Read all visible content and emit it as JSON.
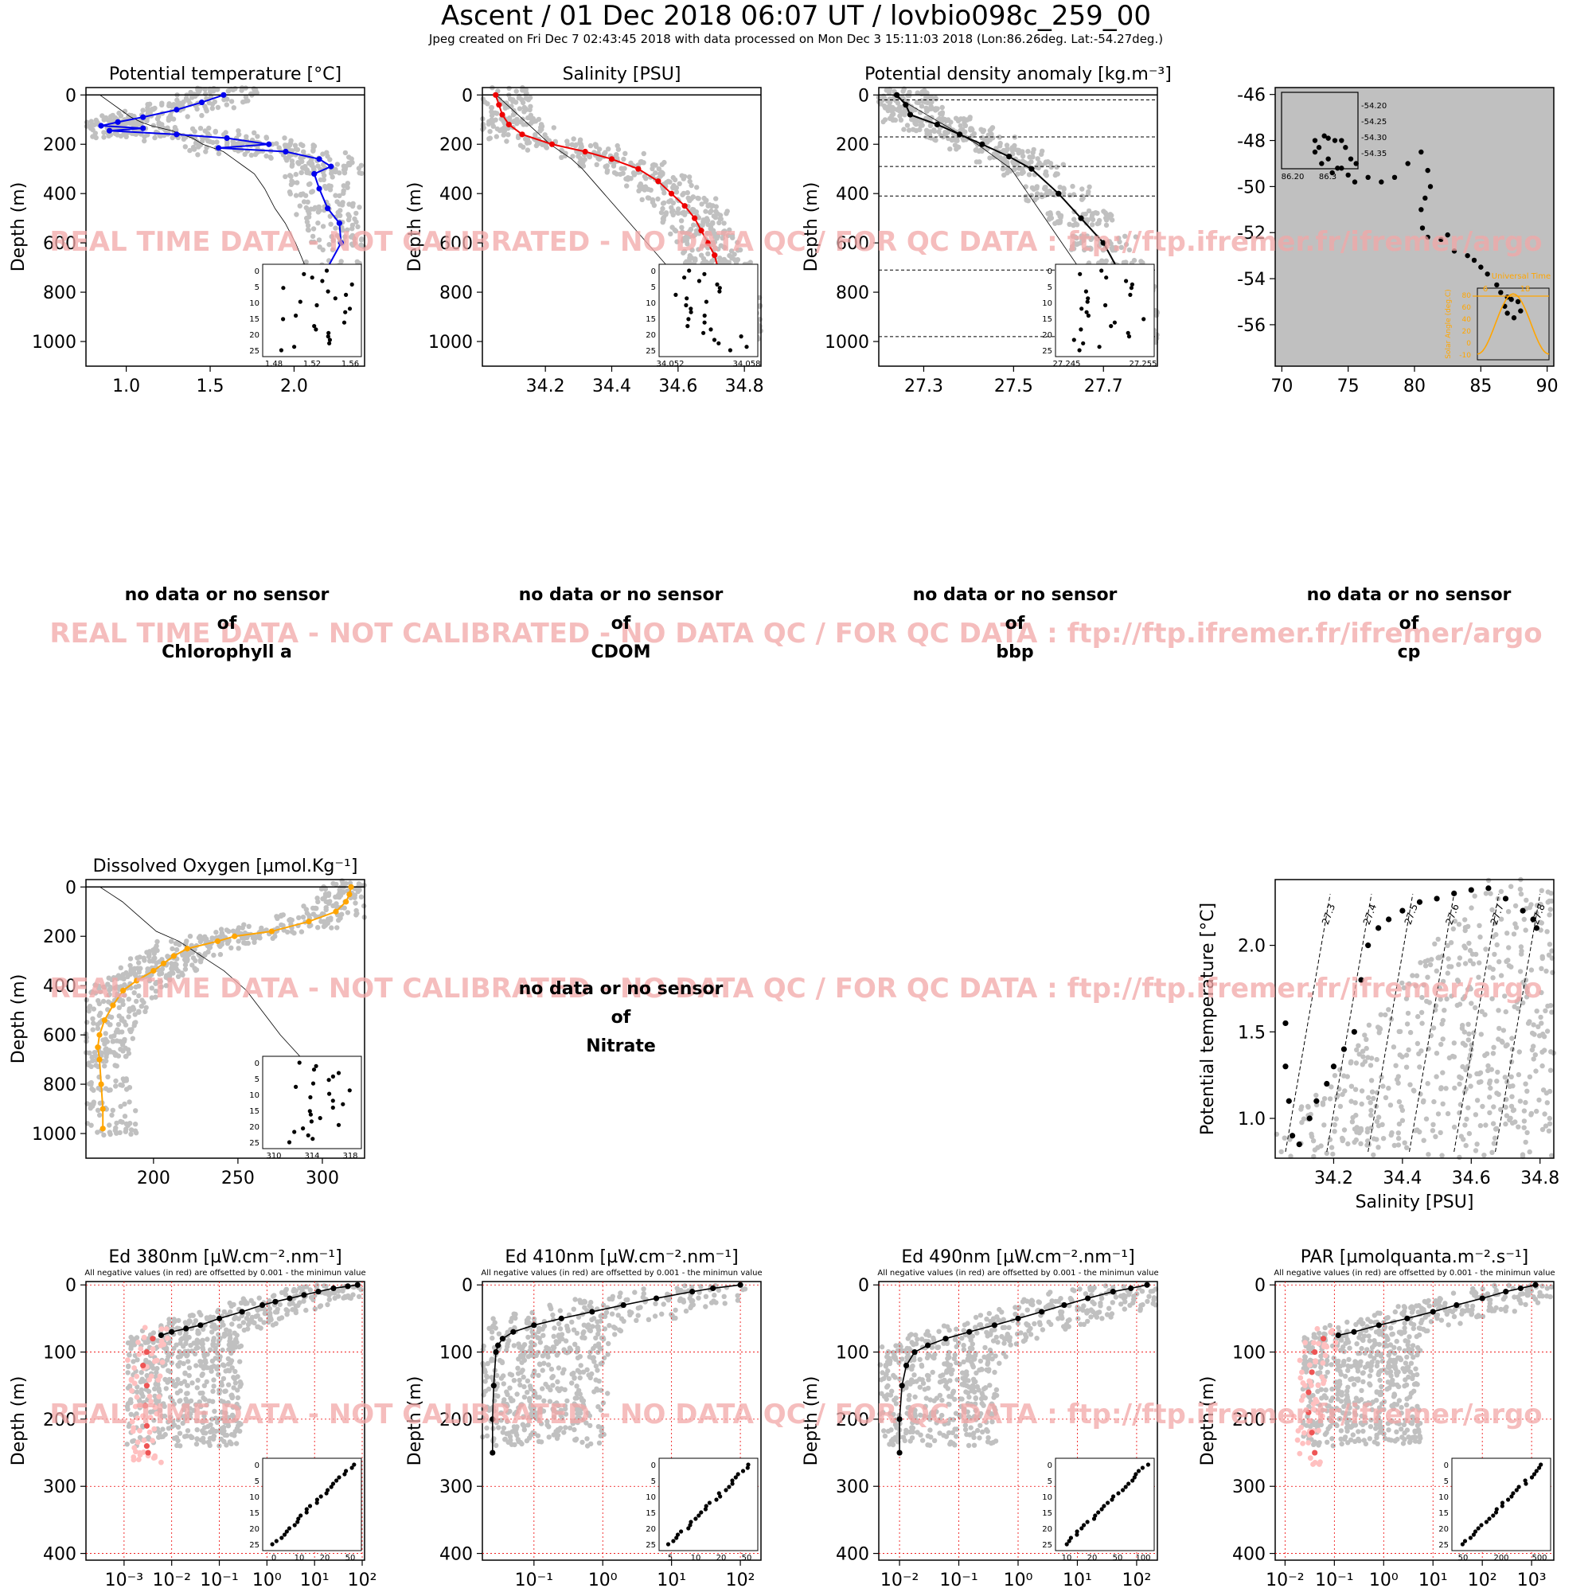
{
  "header": {
    "title": "Ascent / 01 Dec 2018 06:07 UT /  lovbio098c_259_00",
    "subtitle": "Jpeg created on Fri Dec  7 02:43:45 2018 with data processed on Mon Dec  3 15:11:03 2018 (Lon:86.26deg. Lat:-54.27deg.)"
  },
  "watermark": "REAL TIME DATA - NOT CALIBRATED - NO DATA QC   /  FOR QC DATA : ftp://ftp.ifremer.fr/ifremer/argo",
  "nodata_panels": [
    {
      "line1": "no data or no sensor",
      "line2": "of",
      "param": "Chlorophyll a"
    },
    {
      "line1": "no data or no sensor",
      "line2": "of",
      "param": "CDOM"
    },
    {
      "line1": "no data or no sensor",
      "line2": "of",
      "param": "bbp"
    },
    {
      "line1": "no data or no sensor",
      "line2": "of",
      "param": "cp"
    },
    {
      "line1": "no data or no sensor",
      "line2": "of",
      "param": "Nitrate"
    }
  ],
  "colors": {
    "grey": "#c0c0c0",
    "temperature": "#0000ee",
    "salinity": "#ee0000",
    "density": "#000000",
    "oxygen": "#ffa500",
    "negative": "#ee5555",
    "negative_light": "#ffc0c0"
  },
  "chart_data": [
    {
      "id": "temp",
      "type": "scatter",
      "title": "Potential temperature [°C]",
      "ylabel": "Depth (m)",
      "xticks": [
        "1.0",
        "1.5",
        "2.0"
      ],
      "yticks": [
        "0",
        "200",
        "400",
        "600",
        "800",
        "1000"
      ],
      "xlim": [
        0.76,
        2.42
      ],
      "ylim": [
        1100,
        -30
      ],
      "color": "temperature",
      "depth": [
        0,
        30,
        60,
        90,
        110,
        125,
        135,
        145,
        160,
        175,
        200,
        215,
        230,
        260,
        290,
        320,
        380,
        460,
        520,
        600,
        700,
        800,
        900,
        980
      ],
      "values": [
        1.58,
        1.45,
        1.3,
        1.1,
        0.95,
        0.85,
        1.1,
        0.9,
        1.3,
        1.6,
        1.85,
        1.55,
        1.95,
        2.15,
        2.22,
        2.12,
        2.15,
        2.2,
        2.27,
        2.28,
        2.2,
        2.15,
        2.1,
        2.02
      ],
      "inset": {
        "xticks": [
          "1.48",
          "1.52",
          "1.56"
        ],
        "yticks": [
          "0",
          "5",
          "10",
          "15",
          "20",
          "25"
        ]
      }
    },
    {
      "id": "sal",
      "type": "scatter",
      "title": "Salinity [PSU]",
      "ylabel": "Depth (m)",
      "xticks": [
        "34.2",
        "34.4",
        "34.6",
        "34.8"
      ],
      "yticks": [
        "0",
        "200",
        "400",
        "600",
        "800",
        "1000"
      ],
      "xlim": [
        34.01,
        34.85
      ],
      "ylim": [
        1100,
        -30
      ],
      "color": "salinity",
      "depth": [
        0,
        40,
        80,
        120,
        160,
        200,
        230,
        260,
        300,
        350,
        400,
        450,
        500,
        550,
        600,
        650,
        700,
        750,
        800,
        850,
        900,
        950,
        980
      ],
      "values": [
        34.05,
        34.06,
        34.07,
        34.09,
        34.13,
        34.22,
        34.32,
        34.4,
        34.48,
        34.54,
        34.58,
        34.62,
        34.65,
        34.67,
        34.69,
        34.71,
        34.72,
        34.73,
        34.74,
        34.76,
        34.77,
        34.78,
        34.79
      ],
      "inset": {
        "xticks": [
          "34.052",
          "34.058"
        ],
        "yticks": [
          "0",
          "5",
          "10",
          "15",
          "20",
          "25"
        ]
      }
    },
    {
      "id": "dens",
      "type": "scatter",
      "title": "Potential density anomaly [kg.m⁻³]",
      "ylabel": "Depth (m)",
      "xticks": [
        "27.3",
        "27.5",
        "27.7"
      ],
      "yticks": [
        "0",
        "200",
        "400",
        "600",
        "800",
        "1000"
      ],
      "xlim": [
        27.2,
        27.82
      ],
      "ylim": [
        1100,
        -30
      ],
      "color": "density",
      "depth": [
        0,
        40,
        80,
        120,
        160,
        200,
        250,
        300,
        400,
        500,
        600,
        700,
        800,
        900,
        980
      ],
      "values": [
        27.24,
        27.26,
        27.27,
        27.33,
        27.38,
        27.43,
        27.49,
        27.54,
        27.6,
        27.65,
        27.7,
        27.73,
        27.76,
        27.78,
        27.8
      ],
      "hlines": [
        20,
        170,
        290,
        410,
        710,
        980
      ],
      "inset": {
        "xticks": [
          "27.245",
          "27.255"
        ],
        "yticks": [
          "0",
          "5",
          "10",
          "15",
          "20",
          "25"
        ]
      }
    },
    {
      "id": "map",
      "type": "scatter",
      "xticks": [
        "70",
        "75",
        "80",
        "85",
        "90"
      ],
      "yticks": [
        "-46",
        "-48",
        "-50",
        "-52",
        "-54",
        "-56"
      ],
      "xlim": [
        69.5,
        90.5
      ],
      "ylim": [
        -57.8,
        -45.7
      ],
      "lon": [
        75.5,
        75.0,
        74.2,
        73.5,
        72.8,
        72.5,
        73.2,
        74.0,
        74.8,
        75.2,
        74.5,
        73.8,
        73.0,
        72.5,
        73.5,
        74.5,
        75.6,
        76.5,
        77.5,
        78.5,
        79.5,
        80.5,
        81.0,
        81.2,
        80.8,
        80.5,
        80.6,
        81.0,
        82.0,
        82.5,
        83.0,
        84.0,
        84.5,
        85.0,
        85.5,
        86.2,
        86.5,
        87.0,
        87.8,
        88.0,
        87.5,
        87.0,
        86.8,
        87.3
      ],
      "lat": [
        -49.8,
        -49.5,
        -49.2,
        -48.8,
        -48.3,
        -48.0,
        -47.8,
        -48.0,
        -48.3,
        -48.8,
        -49.2,
        -49.4,
        -49.0,
        -48.5,
        -47.9,
        -48.0,
        -49.0,
        -49.6,
        -49.8,
        -49.6,
        -49.0,
        -48.5,
        -49.3,
        -50.0,
        -50.5,
        -51.0,
        -51.8,
        -52.2,
        -52.3,
        -52.1,
        -52.8,
        -53.0,
        -53.2,
        -53.5,
        -53.8,
        -54.27,
        -54.6,
        -54.8,
        -55.0,
        -55.4,
        -55.7,
        -55.5,
        -55.2,
        -54.9
      ],
      "inset": {
        "xticks": [
          "86.20",
          "86.3"
        ],
        "yticks": [
          "-54.20",
          "-54.25",
          "-54.30",
          "-54.35"
        ]
      },
      "solar_inset": {
        "label": "Universal Time",
        "xticks": [
          "6",
          "18"
        ],
        "yticks": [
          "80",
          "60",
          "40",
          "20",
          "0",
          "-10"
        ],
        "ylabel": "Solar Angle (deg.C)"
      }
    },
    {
      "id": "oxy",
      "type": "scatter",
      "title": "Dissolved Oxygen [µmol.Kg⁻¹]",
      "ylabel": "Depth (m)",
      "xticks": [
        "200",
        "250",
        "300"
      ],
      "yticks": [
        "0",
        "200",
        "400",
        "600",
        "800",
        "1000"
      ],
      "xlim": [
        160,
        325
      ],
      "ylim": [
        1100,
        -30
      ],
      "color": "oxygen",
      "depth": [
        0,
        30,
        60,
        100,
        140,
        180,
        200,
        220,
        250,
        280,
        310,
        340,
        380,
        420,
        480,
        540,
        600,
        650,
        700,
        800,
        900,
        980
      ],
      "values": [
        317,
        316,
        314,
        308,
        292,
        270,
        248,
        238,
        220,
        212,
        206,
        200,
        190,
        182,
        176,
        171,
        168,
        167,
        168,
        169,
        170,
        170
      ],
      "inset": {
        "xticks": [
          "310",
          "314",
          "318"
        ],
        "yticks": [
          "0",
          "5",
          "10",
          "15",
          "20",
          "25"
        ]
      }
    },
    {
      "id": "ts",
      "type": "scatter",
      "xlabel": "Salinity [PSU]",
      "ylabel": "Potential temperature [°C]",
      "xticks": [
        "34.2",
        "34.4",
        "34.6",
        "34.8"
      ],
      "yticks": [
        "1.0",
        "1.5",
        "2.0"
      ],
      "xlim": [
        34.03,
        34.84
      ],
      "ylim": [
        0.77,
        2.38
      ],
      "isopycnal_labels": [
        "27.3",
        "27.4",
        "27.5",
        "27.6",
        "27.7",
        "27.8"
      ],
      "sal": [
        34.06,
        34.06,
        34.07,
        34.08,
        34.1,
        34.13,
        34.15,
        34.18,
        34.2,
        34.23,
        34.26,
        34.28,
        34.3,
        34.33,
        34.36,
        34.4,
        34.45,
        34.5,
        34.55,
        34.6,
        34.65,
        34.7,
        34.75,
        34.78,
        34.79
      ],
      "temp": [
        1.55,
        1.3,
        1.1,
        0.9,
        0.85,
        1.0,
        1.1,
        1.2,
        1.3,
        1.4,
        1.5,
        1.8,
        2.0,
        2.1,
        2.15,
        2.2,
        2.25,
        2.27,
        2.3,
        2.32,
        2.33,
        2.27,
        2.2,
        2.15,
        2.1
      ]
    },
    {
      "id": "ed380",
      "type": "scatter",
      "title": "Ed 380nm [µW.cm⁻².nm⁻¹]",
      "note": "All negative values (in red) are offsetted by 0.001 - the minimun value",
      "ylabel": "Depth (m)",
      "log": true,
      "xticks": [
        "10⁻³",
        "10⁻²",
        "10⁻¹",
        "10⁰",
        "10¹",
        "10²"
      ],
      "yticks": [
        "0",
        "100",
        "200",
        "300",
        "400"
      ],
      "xlim": [
        -3.8,
        2.05
      ],
      "ylim": [
        410,
        -5
      ],
      "depth": [
        0,
        2,
        5,
        10,
        15,
        20,
        25,
        30,
        40,
        50,
        60,
        65,
        70,
        75
      ],
      "values": [
        80,
        50,
        25,
        12,
        6,
        3,
        1.5,
        0.8,
        0.3,
        0.1,
        0.04,
        0.02,
        0.01,
        0.006
      ],
      "negative": {
        "depth": [
          80,
          100,
          120,
          150,
          180,
          210,
          240,
          250
        ],
        "values": [
          0.004,
          0.003,
          0.0025,
          0.003,
          0.0028,
          0.003,
          0.003,
          0.0032
        ]
      },
      "inset": {
        "xticks": [
          "0",
          "10",
          "20",
          "50"
        ],
        "yticks": [
          "0",
          "5",
          "10",
          "15",
          "20",
          "25"
        ]
      }
    },
    {
      "id": "ed410",
      "type": "scatter",
      "title": "Ed 410nm [µW.cm⁻².nm⁻¹]",
      "note": "All negative values (in red) are offsetted by 0.001 - the minimun value",
      "ylabel": "Depth (m)",
      "log": true,
      "xticks": [
        "10⁻¹",
        "10⁰",
        "10¹",
        "10²"
      ],
      "yticks": [
        "0",
        "100",
        "200",
        "300",
        "400"
      ],
      "xlim": [
        -1.75,
        2.3
      ],
      "ylim": [
        410,
        -5
      ],
      "depth": [
        0,
        5,
        10,
        20,
        30,
        40,
        50,
        60,
        70,
        80,
        90,
        100,
        150,
        200,
        250
      ],
      "values": [
        100,
        40,
        20,
        6,
        2,
        0.7,
        0.25,
        0.1,
        0.05,
        0.035,
        0.03,
        0.028,
        0.026,
        0.025,
        0.025
      ],
      "inset": {
        "xticks": [
          "5",
          "10",
          "20",
          "50"
        ],
        "yticks": [
          "0",
          "5",
          "10",
          "15",
          "20",
          "25"
        ]
      }
    },
    {
      "id": "ed490",
      "type": "scatter",
      "title": "Ed 490nm [µW.cm⁻².nm⁻¹]",
      "note": "All negative values (in red) are offsetted by 0.001 - the minimun value",
      "ylabel": "Depth (m)",
      "log": true,
      "xticks": [
        "10⁻²",
        "10⁻¹",
        "10⁰",
        "10¹",
        "10²"
      ],
      "yticks": [
        "0",
        "100",
        "200",
        "300",
        "400"
      ],
      "xlim": [
        -2.35,
        2.35
      ],
      "ylim": [
        410,
        -5
      ],
      "depth": [
        0,
        5,
        10,
        20,
        30,
        40,
        50,
        60,
        70,
        80,
        90,
        100,
        120,
        150,
        200,
        250
      ],
      "values": [
        150,
        80,
        40,
        15,
        6,
        2.5,
        1,
        0.4,
        0.15,
        0.06,
        0.03,
        0.018,
        0.013,
        0.011,
        0.01,
        0.01
      ],
      "inset": {
        "xticks": [
          "10",
          "20",
          "50",
          "100"
        ],
        "yticks": [
          "0",
          "5",
          "10",
          "15",
          "20",
          "25"
        ]
      }
    },
    {
      "id": "par",
      "type": "scatter",
      "title": "PAR [µmolquanta.m⁻².s⁻¹]",
      "note": "All negative values (in red) are offsetted by 0.001 - the minimun value",
      "ylabel": "Depth (m)",
      "log": true,
      "xticks": [
        "10⁻²",
        "10⁻¹",
        "10⁰",
        "10¹",
        "10²",
        "10³"
      ],
      "yticks": [
        "0",
        "100",
        "200",
        "300",
        "400"
      ],
      "xlim": [
        -2.2,
        3.45
      ],
      "ylim": [
        410,
        -5
      ],
      "depth": [
        0,
        5,
        10,
        20,
        30,
        40,
        50,
        60,
        70,
        75
      ],
      "values": [
        1200,
        600,
        300,
        100,
        30,
        10,
        3,
        0.8,
        0.25,
        0.12
      ],
      "negative": {
        "depth": [
          80,
          100,
          130,
          160,
          190,
          220,
          250
        ],
        "values": [
          0.06,
          0.04,
          0.035,
          0.03,
          0.03,
          0.035,
          0.04
        ]
      },
      "inset": {
        "xticks": [
          "50",
          "200",
          "500"
        ],
        "yticks": [
          "0",
          "5",
          "10",
          "15",
          "20",
          "25"
        ]
      }
    }
  ]
}
